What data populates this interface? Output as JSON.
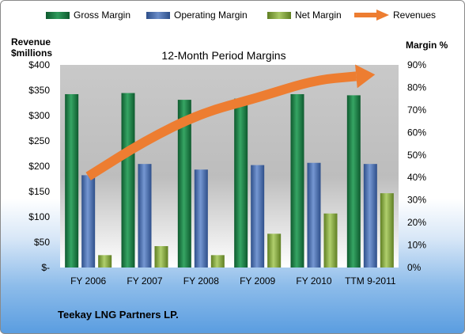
{
  "chart_data": {
    "type": "bar",
    "title": "12-Month Period Margins",
    "categories": [
      "FY 2006",
      "FY 2007",
      "FY 2008",
      "FY 2009",
      "FY 2010",
      "TTM 9-2011"
    ],
    "y_left": {
      "label_line1": "Revenue",
      "label_line2": "$millions",
      "range": [
        0,
        400
      ],
      "ticks": [
        "$-",
        "$50",
        "$100",
        "$150",
        "$200",
        "$250",
        "$300",
        "$350",
        "$400"
      ]
    },
    "y_right": {
      "label": "Margin %",
      "range": [
        0,
        90
      ],
      "ticks": [
        "0%",
        "10%",
        "20%",
        "30%",
        "40%",
        "50%",
        "60%",
        "70%",
        "80%",
        "90%"
      ]
    },
    "series": [
      {
        "name": "Gross Margin",
        "axis": "right",
        "color": "#1f7a45",
        "values": [
          77,
          77.5,
          74.5,
          75,
          77,
          76.5
        ]
      },
      {
        "name": "Operating Margin",
        "axis": "right",
        "color": "#4a6fb0",
        "values": [
          41,
          46,
          43.5,
          45.5,
          46.5,
          46
        ]
      },
      {
        "name": "Net Margin",
        "axis": "right",
        "color": "#8aac3f",
        "values": [
          5.5,
          9.5,
          5.5,
          15,
          24,
          33
        ]
      },
      {
        "name": "Revenues",
        "axis": "left",
        "type": "arrow",
        "color": "#ed7d31",
        "values": [
          180,
          250,
          305,
          335,
          370,
          380
        ]
      }
    ],
    "grid": false,
    "legend_position": "top"
  },
  "footer": {
    "company": "Teekay LNG Partners LP."
  }
}
